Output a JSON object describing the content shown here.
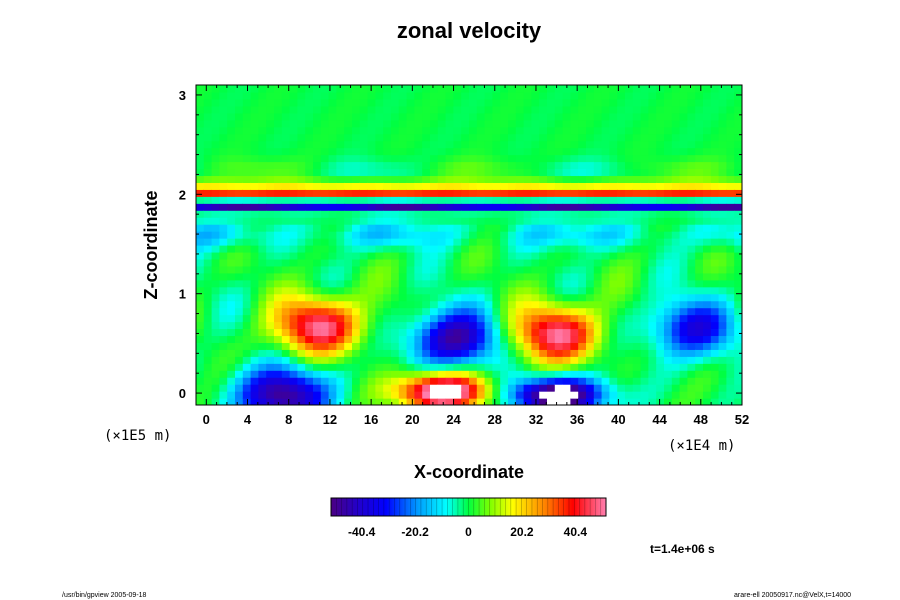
{
  "chart_data": {
    "type": "heatmap",
    "title": "zonal velocity",
    "xlabel": "X-coordinate",
    "ylabel": "Z-coordinate",
    "x_scale_note": "(×1E4 m)",
    "y_scale_note": "(×1E5 m)",
    "xlim": [
      -1,
      52
    ],
    "ylim": [
      -0.12,
      3.1
    ],
    "x_ticks": [
      "0",
      "4",
      "8",
      "12",
      "16",
      "20",
      "24",
      "28",
      "32",
      "36",
      "40",
      "44",
      "48",
      "52"
    ],
    "y_ticks": [
      "0",
      "1",
      "2",
      "3"
    ],
    "colorbar": {
      "range": [
        -52,
        52
      ],
      "ticks": [
        "-40.4",
        "-20.2",
        "0",
        "20.2",
        "40.4"
      ],
      "colormap": "rainbow (purple-blue-cyan-green-yellow-red-pink)"
    },
    "features": [
      {
        "kind": "positive jet",
        "x_range": [
          0,
          52
        ],
        "z": 2.0,
        "value": 40
      },
      {
        "kind": "negative jet",
        "x_range": [
          0,
          52
        ],
        "z": 1.88,
        "value": -45
      },
      {
        "kind": "positive cell",
        "x_center": 11,
        "z_center": 0.68,
        "value": 42
      },
      {
        "kind": "positive cell",
        "x_center": 34,
        "z_center": 0.6,
        "value": 42
      },
      {
        "kind": "negative cell",
        "x_center": 24,
        "z_center": 0.55,
        "value": -40
      },
      {
        "kind": "negative cell",
        "x_center": 47,
        "z_center": 0.65,
        "value": -30
      },
      {
        "kind": "positive cell (saturated)",
        "x_center": 23,
        "z_center": 0.02,
        "value": 55
      },
      {
        "kind": "negative cell (saturated)",
        "x_center": 34,
        "z_center": -0.02,
        "value": -55
      },
      {
        "kind": "negative cell",
        "x_center": 7.5,
        "z_center": -0.02,
        "value": -45
      }
    ],
    "annotations": [
      "t=1.4e+06 s"
    ]
  },
  "footer": {
    "left": "/usr/bin/gpview 2005-09-18",
    "right": "arare-ell 20050917.nc@VelX,t=14000"
  }
}
